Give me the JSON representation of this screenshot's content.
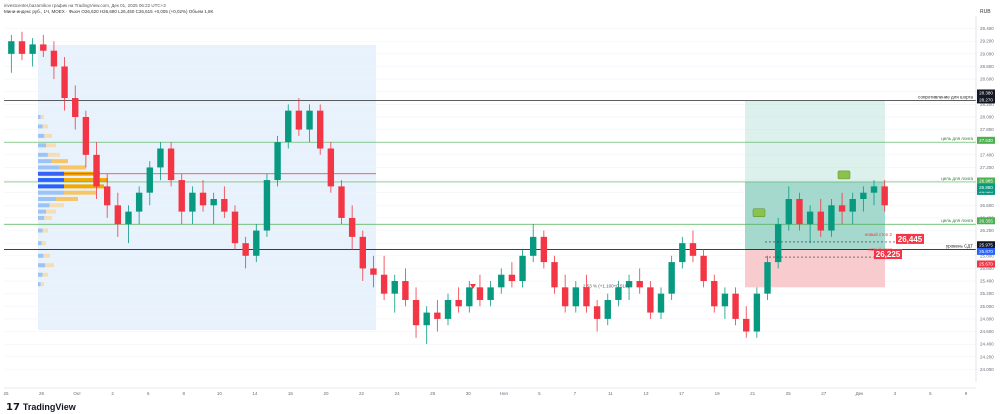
{
  "header": {
    "info": "investcenter,bazarnikov график на TradingView.com, Дек 01, 2025 06:22 UTC+3",
    "ticker_line": "Мини-индекс руб., 1Ч, MOEX · Фьюч",
    "ohlc": "O26,620 H26,680 L26,450 C26,615 +0,005 (+0,02%)",
    "indicator": "Объем 1,8K",
    "currency": "RUB"
  },
  "footer": {
    "brand": "TradingView",
    "logo_glyph": "17"
  },
  "colors": {
    "up": "#089981",
    "down": "#f23645",
    "profile_low": "#f5deb3",
    "profile_val": "#f2a900",
    "profile_poc": "#2962ff",
    "long_profit": "#bfe3dc",
    "long_loss": "#f7c6c9",
    "green_line": "#4caf50",
    "black_line": "#000000",
    "red_line": "#e53935"
  },
  "chart_data": {
    "type": "candlestick",
    "ylim": [
      23.8,
      29.6
    ],
    "y_ticks": [
      "29.400",
      "29.200",
      "29.000",
      "28.800",
      "28.600",
      "28.400",
      "28.200",
      "28.000",
      "27.800",
      "27.600",
      "27.400",
      "27.200",
      "27.000",
      "26.800",
      "26.600",
      "26.400",
      "26.200",
      "26.000",
      "25.800",
      "25.600",
      "25.400",
      "25.200",
      "25.000",
      "24.800",
      "24.600",
      "24.400",
      "24.200",
      "24.000"
    ],
    "x_ticks": [
      "25",
      "29",
      "Окт",
      "2",
      "6",
      "8",
      "10",
      "14",
      "16",
      "20",
      "22",
      "24",
      "28",
      "30",
      "Ноя",
      "5",
      "7",
      "11",
      "13",
      "17",
      "19",
      "21",
      "25",
      "27",
      "Дек",
      "3",
      "5",
      "9"
    ],
    "levels": [
      {
        "label": "сопротивление для шорта",
        "price": 28.26
      },
      {
        "label": "цель для лонга",
        "price": 27.6
      },
      {
        "label": "цель для лонга",
        "price": 26.97
      },
      {
        "label": "цель для лонга",
        "price": 26.3
      },
      {
        "label": "уровень СДТ",
        "price": 25.9
      }
    ],
    "callouts": [
      {
        "label": "новый стоп 2",
        "value": "26,445"
      },
      {
        "label": "новый стоп",
        "value": "26,225"
      }
    ],
    "last_price": "26.880",
    "right_badges": [
      "28.380",
      "28.270",
      "27.630",
      "26.985",
      "26.820",
      "26.355",
      "25.975",
      "25.870",
      "25.670"
    ],
    "annotation": "2.53 % (+1.100+0.510)",
    "series": [
      {
        "o": 29.0,
        "h": 29.3,
        "l": 28.7,
        "c": 29.2
      },
      {
        "o": 29.2,
        "h": 29.35,
        "l": 28.9,
        "c": 29.0
      },
      {
        "o": 29.0,
        "h": 29.25,
        "l": 28.8,
        "c": 29.15
      },
      {
        "o": 29.15,
        "h": 29.3,
        "l": 28.95,
        "c": 29.05
      },
      {
        "o": 29.05,
        "h": 29.2,
        "l": 28.6,
        "c": 28.8
      },
      {
        "o": 28.8,
        "h": 28.95,
        "l": 28.1,
        "c": 28.3
      },
      {
        "o": 28.3,
        "h": 28.5,
        "l": 27.8,
        "c": 28.0
      },
      {
        "o": 28.0,
        "h": 28.1,
        "l": 27.2,
        "c": 27.4
      },
      {
        "o": 27.4,
        "h": 27.6,
        "l": 26.7,
        "c": 26.9
      },
      {
        "o": 26.9,
        "h": 27.1,
        "l": 26.4,
        "c": 26.6
      },
      {
        "o": 26.6,
        "h": 26.8,
        "l": 26.1,
        "c": 26.3
      },
      {
        "o": 26.3,
        "h": 26.6,
        "l": 26.0,
        "c": 26.5
      },
      {
        "o": 26.5,
        "h": 26.9,
        "l": 26.3,
        "c": 26.8
      },
      {
        "o": 26.8,
        "h": 27.3,
        "l": 26.6,
        "c": 27.2
      },
      {
        "o": 27.2,
        "h": 27.6,
        "l": 27.0,
        "c": 27.5
      },
      {
        "o": 27.5,
        "h": 27.6,
        "l": 26.9,
        "c": 27.0
      },
      {
        "o": 27.0,
        "h": 27.1,
        "l": 26.3,
        "c": 26.5
      },
      {
        "o": 26.5,
        "h": 26.9,
        "l": 26.3,
        "c": 26.8
      },
      {
        "o": 26.8,
        "h": 27.0,
        "l": 26.5,
        "c": 26.6
      },
      {
        "o": 26.6,
        "h": 26.8,
        "l": 26.3,
        "c": 26.7
      },
      {
        "o": 26.7,
        "h": 26.9,
        "l": 26.4,
        "c": 26.5
      },
      {
        "o": 26.5,
        "h": 26.6,
        "l": 25.9,
        "c": 26.0
      },
      {
        "o": 26.0,
        "h": 26.1,
        "l": 25.6,
        "c": 25.8
      },
      {
        "o": 25.8,
        "h": 26.3,
        "l": 25.7,
        "c": 26.2
      },
      {
        "o": 26.2,
        "h": 27.1,
        "l": 26.1,
        "c": 27.0
      },
      {
        "o": 27.0,
        "h": 27.7,
        "l": 26.9,
        "c": 27.6
      },
      {
        "o": 27.6,
        "h": 28.2,
        "l": 27.5,
        "c": 28.1
      },
      {
        "o": 28.1,
        "h": 28.3,
        "l": 27.7,
        "c": 27.8
      },
      {
        "o": 27.8,
        "h": 28.2,
        "l": 27.6,
        "c": 28.1
      },
      {
        "o": 28.1,
        "h": 28.2,
        "l": 27.4,
        "c": 27.5
      },
      {
        "o": 27.5,
        "h": 27.6,
        "l": 26.8,
        "c": 26.9
      },
      {
        "o": 26.9,
        "h": 27.0,
        "l": 26.3,
        "c": 26.4
      },
      {
        "o": 26.4,
        "h": 26.6,
        "l": 25.9,
        "c": 26.1
      },
      {
        "o": 26.1,
        "h": 26.2,
        "l": 25.4,
        "c": 25.6
      },
      {
        "o": 25.6,
        "h": 25.8,
        "l": 25.3,
        "c": 25.5
      },
      {
        "o": 25.5,
        "h": 25.8,
        "l": 25.1,
        "c": 25.2
      },
      {
        "o": 25.2,
        "h": 25.5,
        "l": 24.9,
        "c": 25.4
      },
      {
        "o": 25.4,
        "h": 25.6,
        "l": 25.0,
        "c": 25.1
      },
      {
        "o": 25.1,
        "h": 25.3,
        "l": 24.5,
        "c": 24.7
      },
      {
        "o": 24.7,
        "h": 25.0,
        "l": 24.4,
        "c": 24.9
      },
      {
        "o": 24.9,
        "h": 25.1,
        "l": 24.6,
        "c": 24.8
      },
      {
        "o": 24.8,
        "h": 25.2,
        "l": 24.7,
        "c": 25.1
      },
      {
        "o": 25.1,
        "h": 25.3,
        "l": 24.9,
        "c": 25.0
      },
      {
        "o": 25.0,
        "h": 25.4,
        "l": 24.9,
        "c": 25.3
      },
      {
        "o": 25.3,
        "h": 25.5,
        "l": 25.0,
        "c": 25.1
      },
      {
        "o": 25.1,
        "h": 25.4,
        "l": 25.0,
        "c": 25.3
      },
      {
        "o": 25.3,
        "h": 25.6,
        "l": 25.2,
        "c": 25.5
      },
      {
        "o": 25.5,
        "h": 25.7,
        "l": 25.3,
        "c": 25.4
      },
      {
        "o": 25.4,
        "h": 25.9,
        "l": 25.3,
        "c": 25.8
      },
      {
        "o": 25.8,
        "h": 26.3,
        "l": 25.7,
        "c": 26.1
      },
      {
        "o": 26.1,
        "h": 26.2,
        "l": 25.6,
        "c": 25.7
      },
      {
        "o": 25.7,
        "h": 25.8,
        "l": 25.2,
        "c": 25.3
      },
      {
        "o": 25.3,
        "h": 25.5,
        "l": 24.9,
        "c": 25.0
      },
      {
        "o": 25.0,
        "h": 25.4,
        "l": 24.9,
        "c": 25.3
      },
      {
        "o": 25.3,
        "h": 25.5,
        "l": 24.9,
        "c": 25.0
      },
      {
        "o": 25.0,
        "h": 25.1,
        "l": 24.6,
        "c": 24.8
      },
      {
        "o": 24.8,
        "h": 25.2,
        "l": 24.7,
        "c": 25.1
      },
      {
        "o": 25.1,
        "h": 25.4,
        "l": 25.0,
        "c": 25.3
      },
      {
        "o": 25.3,
        "h": 25.5,
        "l": 25.1,
        "c": 25.4
      },
      {
        "o": 25.4,
        "h": 25.6,
        "l": 25.2,
        "c": 25.3
      },
      {
        "o": 25.3,
        "h": 25.4,
        "l": 24.8,
        "c": 24.9
      },
      {
        "o": 24.9,
        "h": 25.3,
        "l": 24.8,
        "c": 25.2
      },
      {
        "o": 25.2,
        "h": 25.8,
        "l": 25.1,
        "c": 25.7
      },
      {
        "o": 25.7,
        "h": 26.1,
        "l": 25.6,
        "c": 26.0
      },
      {
        "o": 26.0,
        "h": 26.2,
        "l": 25.7,
        "c": 25.8
      },
      {
        "o": 25.8,
        "h": 25.9,
        "l": 25.3,
        "c": 25.4
      },
      {
        "o": 25.4,
        "h": 25.5,
        "l": 24.9,
        "c": 25.0
      },
      {
        "o": 25.0,
        "h": 25.3,
        "l": 24.8,
        "c": 25.2
      },
      {
        "o": 25.2,
        "h": 25.3,
        "l": 24.7,
        "c": 24.8
      },
      {
        "o": 24.8,
        "h": 25.0,
        "l": 24.5,
        "c": 24.6
      },
      {
        "o": 24.6,
        "h": 25.3,
        "l": 24.5,
        "c": 25.2
      },
      {
        "o": 25.2,
        "h": 25.8,
        "l": 25.1,
        "c": 25.7
      },
      {
        "o": 25.7,
        "h": 26.4,
        "l": 25.6,
        "c": 26.3
      },
      {
        "o": 26.3,
        "h": 26.9,
        "l": 26.2,
        "c": 26.7
      },
      {
        "o": 26.7,
        "h": 26.8,
        "l": 26.2,
        "c": 26.3
      },
      {
        "o": 26.3,
        "h": 26.6,
        "l": 26.0,
        "c": 26.5
      },
      {
        "o": 26.5,
        "h": 26.7,
        "l": 26.1,
        "c": 26.2
      },
      {
        "o": 26.2,
        "h": 26.7,
        "l": 26.1,
        "c": 26.6
      },
      {
        "o": 26.6,
        "h": 26.8,
        "l": 26.3,
        "c": 26.5
      },
      {
        "o": 26.5,
        "h": 26.8,
        "l": 26.3,
        "c": 26.7
      },
      {
        "o": 26.7,
        "h": 26.9,
        "l": 26.5,
        "c": 26.8
      },
      {
        "o": 26.8,
        "h": 27.0,
        "l": 26.6,
        "c": 26.9
      },
      {
        "o": 26.9,
        "h": 27.0,
        "l": 26.5,
        "c": 26.6
      }
    ]
  }
}
